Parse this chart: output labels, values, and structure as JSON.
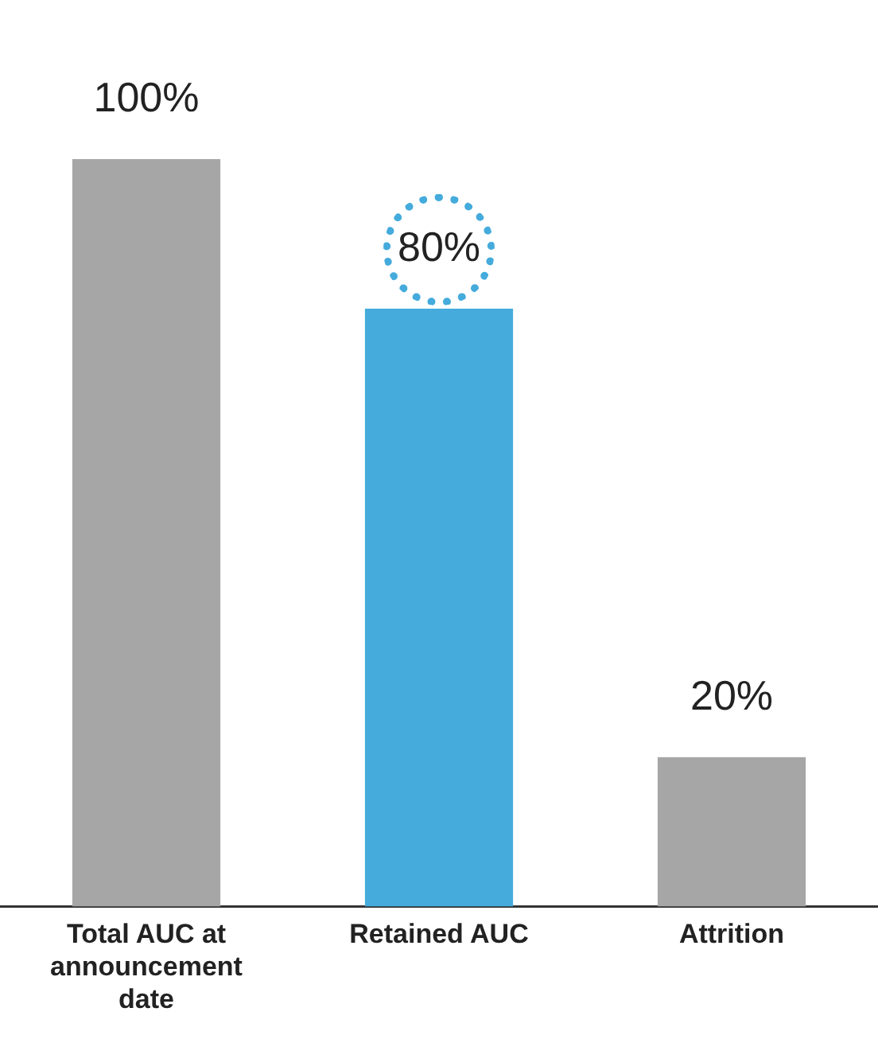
{
  "chart_data": {
    "type": "bar",
    "categories": [
      "Total AUC at announcement date",
      "Retained AUC",
      "Attrition"
    ],
    "values": [
      100,
      80,
      20
    ],
    "colors": [
      "#a6a6a6",
      "#44abdc",
      "#a6a6a6"
    ],
    "value_labels": [
      "100%",
      "80%",
      "20%"
    ],
    "grid": false,
    "legend": false
  }
}
